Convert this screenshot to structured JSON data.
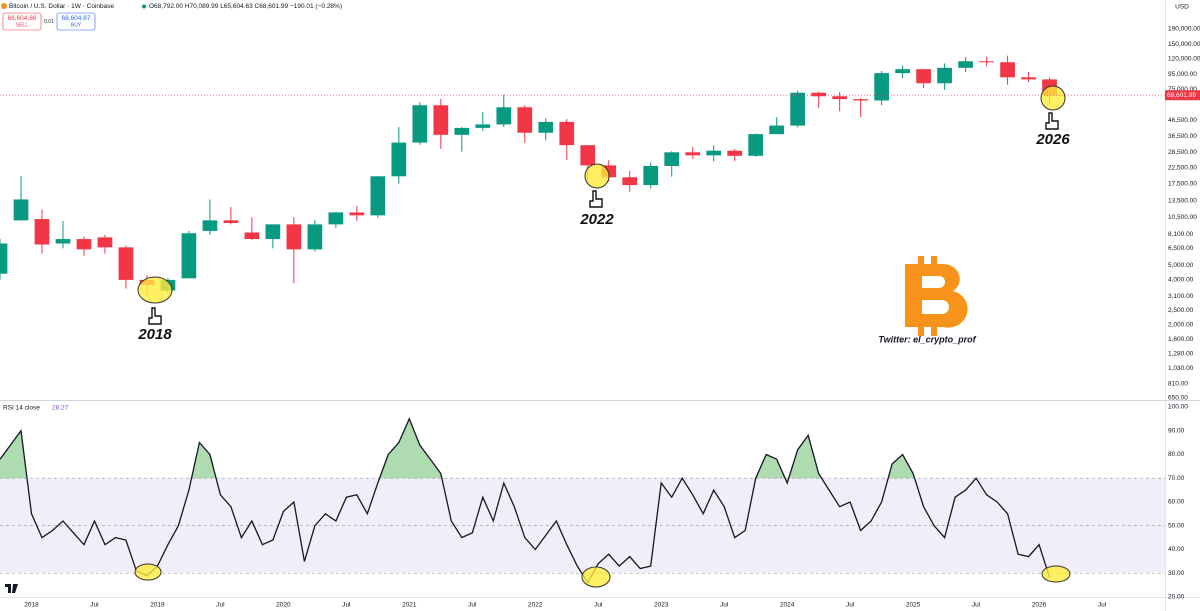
{
  "header": {
    "symbol": "Bitcoin / U.S. Dollar · 1W · Coinbase",
    "ohlc": "O68,792.00 H70,089.99 L65,604.63 C68,601.99 −190.01 (−0.28%)",
    "sell_price": "68,604.86",
    "sell": "SELL",
    "spread": "0.01",
    "buy_price": "68,604.87",
    "buy": "BUY",
    "currency": "USD"
  },
  "annotations": {
    "low_2018": "2018",
    "low_2022": "2022",
    "low_2026": "2026",
    "credit": "Twitter: el_crypto_prof"
  },
  "chart_data": [
    {
      "type": "candlestick",
      "log_scale": true,
      "up_color": "#089981",
      "down_color": "#f23645",
      "x": [
        "2017-10",
        "2017-12",
        "2018-02",
        "2018-04",
        "2018-06",
        "2018-08",
        "2018-10",
        "2018-12",
        "2019-02",
        "2019-04",
        "2019-06",
        "2019-08",
        "2019-10",
        "2019-12",
        "2020-02",
        "2020-04",
        "2020-06",
        "2020-08",
        "2020-10",
        "2020-12",
        "2021-02",
        "2021-04",
        "2021-06",
        "2021-08",
        "2021-10",
        "2021-12",
        "2022-02",
        "2022-04",
        "2022-06",
        "2022-08",
        "2022-10",
        "2022-12",
        "2023-02",
        "2023-04",
        "2023-06",
        "2023-08",
        "2023-10",
        "2023-12",
        "2024-02",
        "2024-04",
        "2024-06",
        "2024-08",
        "2024-10",
        "2024-12",
        "2025-02",
        "2025-04",
        "2025-06",
        "2025-08",
        "2025-10",
        "2025-12",
        "2026-02"
      ],
      "open": [
        4400,
        10000,
        10200,
        7000,
        7500,
        7700,
        6600,
        4000,
        3400,
        4100,
        8500,
        10000,
        8300,
        7500,
        9400,
        6400,
        9400,
        11300,
        10800,
        19700,
        33100,
        58800,
        37300,
        41500,
        43800,
        57000,
        38500,
        45500,
        31800,
        23300,
        19400,
        17200,
        23100,
        28500,
        27200,
        29200,
        27000,
        37700,
        43000,
        71300,
        67500,
        64600,
        63300,
        96400,
        102400,
        82500,
        104600,
        115700,
        114000,
        90400,
        87500
      ],
      "high": [
        7500,
        19800,
        11800,
        9900,
        7800,
        8000,
        6800,
        4300,
        4100,
        8500,
        13800,
        12300,
        10500,
        9400,
        10500,
        10000,
        11400,
        12500,
        19800,
        42000,
        61700,
        64900,
        42000,
        52900,
        69000,
        59000,
        48200,
        47500,
        31900,
        25200,
        21500,
        24300,
        29000,
        31000,
        31800,
        30000,
        38000,
        48900,
        73800,
        72800,
        71900,
        65600,
        99600,
        108300,
        102700,
        111900,
        123200,
        124100,
        126200,
        97900,
        90000
      ],
      "low": [
        4000,
        10000,
        6000,
        6500,
        5800,
        6000,
        3500,
        3200,
        3300,
        4100,
        8000,
        9400,
        7400,
        6500,
        3800,
        6200,
        8900,
        9900,
        10400,
        17600,
        32000,
        30000,
        28800,
        39600,
        42000,
        33000,
        34300,
        25400,
        17600,
        18200,
        15500,
        16300,
        19600,
        25800,
        24800,
        24900,
        26600,
        37600,
        41900,
        56500,
        53500,
        49000,
        58900,
        89200,
        76600,
        74500,
        98200,
        107300,
        80600,
        84000,
        60000
      ],
      "close": [
        7000,
        13800,
        6900,
        7500,
        6400,
        6600,
        4000,
        3700,
        4000,
        8200,
        10000,
        9600,
        7500,
        9400,
        6400,
        9400,
        11300,
        10800,
        19700,
        33100,
        58800,
        37300,
        41500,
        43800,
        57000,
        38500,
        45500,
        31800,
        23300,
        19400,
        17200,
        23100,
        28500,
        27200,
        29200,
        27000,
        37700,
        43000,
        71300,
        67500,
        64600,
        63300,
        96400,
        102400,
        82500,
        104600,
        115700,
        114000,
        90400,
        87500,
        68601.99
      ],
      "last_price": {
        "value": 68601.99,
        "label": "68,601.99"
      },
      "xlim": [
        "2017-10",
        "2027-01"
      ],
      "ylim": [
        630,
        297000
      ],
      "yticks": [
        {
          "value": 190000,
          "label": "190,000.00"
        },
        {
          "value": 150000,
          "label": "150,000.00"
        },
        {
          "value": 120000,
          "label": "120,000.00"
        },
        {
          "value": 95000,
          "label": "95,000.00"
        },
        {
          "value": 75000,
          "label": "75,000.00"
        },
        {
          "value": 46500,
          "label": "46,500.00"
        },
        {
          "value": 36500,
          "label": "36,500.00"
        },
        {
          "value": 28500,
          "label": "28,500.00"
        },
        {
          "value": 22500,
          "label": "22,500.00"
        },
        {
          "value": 17500,
          "label": "17,500.00"
        },
        {
          "value": 13500,
          "label": "13,500.00"
        },
        {
          "value": 10500,
          "label": "10,500.00"
        },
        {
          "value": 8100,
          "label": "8,100.00"
        },
        {
          "value": 6500,
          "label": "6,500.00"
        },
        {
          "value": 5000,
          "label": "5,000.00"
        },
        {
          "value": 4000,
          "label": "4,000.00"
        },
        {
          "value": 3100,
          "label": "3,100.00"
        },
        {
          "value": 2500,
          "label": "2,500.00"
        },
        {
          "value": 2000,
          "label": "2,000.00"
        },
        {
          "value": 1600,
          "label": "1,600.00"
        },
        {
          "value": 1280,
          "label": "1,280.00"
        },
        {
          "value": 1030,
          "label": "1,030.00"
        },
        {
          "value": 810,
          "label": "810.00"
        },
        {
          "value": 650,
          "label": "650.00"
        }
      ],
      "grid": false
    },
    {
      "type": "line",
      "title": "RSI 14 close",
      "color": "#131722",
      "band": [
        30,
        70
      ],
      "band_color": "#7e57c2",
      "overbought_color": "#4caf50",
      "levels": [
        70,
        50,
        30
      ],
      "x": [
        "2017-10",
        "2017-11",
        "2017-12",
        "2018-01",
        "2018-02",
        "2018-03",
        "2018-04",
        "2018-05",
        "2018-06",
        "2018-07",
        "2018-08",
        "2018-09",
        "2018-10",
        "2018-11",
        "2018-12",
        "2019-01",
        "2019-02",
        "2019-03",
        "2019-04",
        "2019-05",
        "2019-06",
        "2019-07",
        "2019-08",
        "2019-09",
        "2019-10",
        "2019-11",
        "2019-12",
        "2020-01",
        "2020-02",
        "2020-03",
        "2020-04",
        "2020-05",
        "2020-06",
        "2020-07",
        "2020-08",
        "2020-09",
        "2020-10",
        "2020-11",
        "2020-12",
        "2021-01",
        "2021-02",
        "2021-03",
        "2021-04",
        "2021-05",
        "2021-06",
        "2021-07",
        "2021-08",
        "2021-09",
        "2021-10",
        "2021-11",
        "2021-12",
        "2022-01",
        "2022-02",
        "2022-03",
        "2022-04",
        "2022-05",
        "2022-06",
        "2022-07",
        "2022-08",
        "2022-09",
        "2022-10",
        "2022-11",
        "2022-12",
        "2023-01",
        "2023-02",
        "2023-03",
        "2023-04",
        "2023-05",
        "2023-06",
        "2023-07",
        "2023-08",
        "2023-09",
        "2023-10",
        "2023-11",
        "2023-12",
        "2024-01",
        "2024-02",
        "2024-03",
        "2024-04",
        "2024-05",
        "2024-06",
        "2024-07",
        "2024-08",
        "2024-09",
        "2024-10",
        "2024-11",
        "2024-12",
        "2025-01",
        "2025-02",
        "2025-03",
        "2025-04",
        "2025-05",
        "2025-06",
        "2025-07",
        "2025-08",
        "2025-09",
        "2025-10",
        "2025-11",
        "2025-12",
        "2026-01",
        "2026-02"
      ],
      "values": [
        78,
        84,
        90,
        55,
        45,
        48,
        52,
        47,
        42,
        52,
        42,
        45,
        44,
        31,
        29,
        33,
        42,
        50,
        65,
        85,
        80,
        63,
        58,
        45,
        52,
        42,
        44,
        56,
        60,
        35,
        50,
        55,
        52,
        62,
        63,
        55,
        68,
        80,
        85,
        95,
        84,
        78,
        72,
        52,
        45,
        47,
        62,
        52,
        68,
        58,
        45,
        40,
        46,
        52,
        42,
        33,
        26,
        34,
        38,
        33,
        37,
        32,
        33,
        68,
        62,
        70,
        63,
        55,
        65,
        58,
        45,
        48,
        70,
        80,
        78,
        68,
        82,
        88,
        72,
        65,
        58,
        60,
        48,
        52,
        60,
        76,
        80,
        72,
        58,
        50,
        45,
        62,
        65,
        70,
        63,
        60,
        55,
        38,
        37,
        42,
        28.27
      ],
      "xlim": [
        "2017-10",
        "2027-01"
      ],
      "xticks": [
        {
          "value": "2018-01",
          "label": "2018"
        },
        {
          "value": "2018-07",
          "label": "Jul"
        },
        {
          "value": "2019-01",
          "label": "2019"
        },
        {
          "value": "2019-07",
          "label": "Jul"
        },
        {
          "value": "2020-01",
          "label": "2020"
        },
        {
          "value": "2020-07",
          "label": "Jul"
        },
        {
          "value": "2021-01",
          "label": "2021"
        },
        {
          "value": "2021-07",
          "label": "Jul"
        },
        {
          "value": "2022-01",
          "label": "2022"
        },
        {
          "value": "2022-07",
          "label": "Jul"
        },
        {
          "value": "2023-01",
          "label": "2023"
        },
        {
          "value": "2023-07",
          "label": "Jul"
        },
        {
          "value": "2024-01",
          "label": "2024"
        },
        {
          "value": "2024-07",
          "label": "Jul"
        },
        {
          "value": "2025-01",
          "label": "2025"
        },
        {
          "value": "2025-07",
          "label": "Jul"
        },
        {
          "value": "2026-01",
          "label": "2026"
        },
        {
          "value": "2026-07",
          "label": "Jul"
        }
      ],
      "ylim": [
        20,
        102.5
      ],
      "yticks": [
        {
          "value": 100,
          "label": "100.00"
        },
        {
          "value": 90,
          "label": "90.00"
        },
        {
          "value": 80,
          "label": "80.00"
        },
        {
          "value": 70,
          "label": "70.00"
        },
        {
          "value": 60,
          "label": "60.00"
        },
        {
          "value": 50,
          "label": "50.00"
        },
        {
          "value": 40,
          "label": "40.00"
        },
        {
          "value": 30,
          "label": "30.00"
        },
        {
          "value": 20,
          "label": "20.00"
        }
      ],
      "grid": false
    }
  ]
}
